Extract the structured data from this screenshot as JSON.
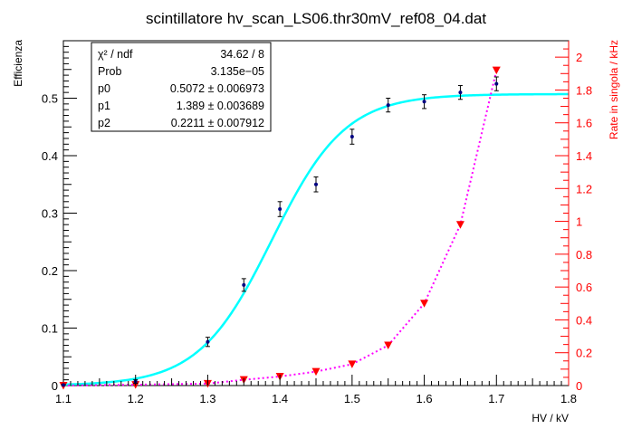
{
  "chart_data": {
    "type": "scatter",
    "title": "scintillatore hv_scan_LS06.thr30mV_ref08_04.dat",
    "xlabel": "HV / kV",
    "ylabel": "Efficienza",
    "y2label": "Rate in singola / kHz",
    "xlim": [
      1.1,
      1.8
    ],
    "ylim": [
      0,
      0.6
    ],
    "y2lim": [
      0,
      2.1
    ],
    "x_ticks": [
      "1.1",
      "1.2",
      "1.3",
      "1.4",
      "1.5",
      "1.6",
      "1.7",
      "1.8"
    ],
    "y_ticks": [
      "0",
      "0.1",
      "0.2",
      "0.3",
      "0.4",
      "0.5"
    ],
    "y2_ticks": [
      "0",
      "0.2",
      "0.4",
      "0.6",
      "0.8",
      "1",
      "1.2",
      "1.4",
      "1.6",
      "1.8",
      "2"
    ],
    "series": [
      {
        "axis": "left",
        "marker": "dot",
        "color": "#000080",
        "x": [
          1.1,
          1.2,
          1.3,
          1.35,
          1.4,
          1.45,
          1.5,
          1.55,
          1.6,
          1.65,
          1.7
        ],
        "y": [
          0.001,
          0.007,
          0.076,
          0.175,
          0.307,
          0.35,
          0.433,
          0.488,
          0.494,
          0.51,
          0.525
        ],
        "yerr": [
          0.001,
          0.003,
          0.008,
          0.011,
          0.013,
          0.013,
          0.013,
          0.012,
          0.012,
          0.012,
          0.012
        ]
      },
      {
        "axis": "right",
        "marker": "triangle-down",
        "color": "#ff0000",
        "line_color": "#ff00ff",
        "line_style": "dotted",
        "x": [
          1.1,
          1.2,
          1.3,
          1.35,
          1.4,
          1.45,
          1.5,
          1.55,
          1.6,
          1.65,
          1.7
        ],
        "y": [
          0.0,
          0.005,
          0.012,
          0.035,
          0.055,
          0.085,
          0.13,
          0.245,
          0.5,
          0.98,
          1.92
        ]
      }
    ],
    "fit": {
      "color": "#00ffff",
      "p0": 0.5072,
      "p1": 1.389,
      "p2": 0.2211
    },
    "stats_box": {
      "rows": [
        {
          "name": "χ² / ndf",
          "value": "34.62 / 8"
        },
        {
          "name": "Prob",
          "value": "3.135e−05"
        },
        {
          "name": "p0",
          "value": "0.5072 ± 0.006973"
        },
        {
          "name": "p1",
          "value": "1.389 ± 0.003689"
        },
        {
          "name": "p2",
          "value": "0.2211 ± 0.007912"
        }
      ]
    },
    "grid": false,
    "legend": "none"
  }
}
